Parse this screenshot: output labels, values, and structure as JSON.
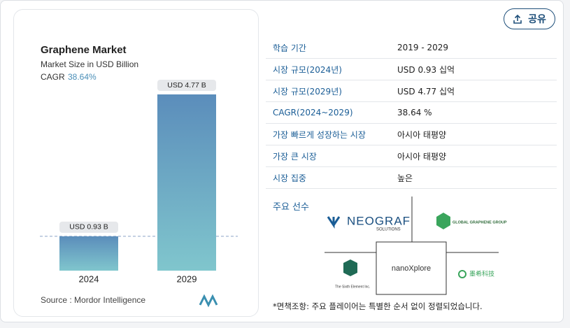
{
  "share_button": "공유",
  "chart_data": {
    "type": "bar",
    "title": "Graphene Market",
    "subtitle": "Market Size in USD Billion",
    "cagr_label": "CAGR",
    "cagr_value": "38.64%",
    "categories": [
      "2024",
      "2029"
    ],
    "values": [
      0.93,
      4.77
    ],
    "value_labels": [
      "USD 0.93 B",
      "USD 4.77 B"
    ],
    "source": "Source : Mordor Intelligence"
  },
  "table": {
    "rows": [
      [
        "학습 기간",
        "2019 - 2029"
      ],
      [
        "시장 규모(2024년)",
        "USD 0.93 십억"
      ],
      [
        "시장 규모(2029년)",
        "USD 4.77 십억"
      ],
      [
        "CAGR(2024~2029)",
        "38.64 %"
      ],
      [
        "가장 빠르게 성장하는 시장",
        "아시아 태평양"
      ],
      [
        "가장 큰 시장",
        "아시아 태평양"
      ],
      [
        "시장 집중",
        "높은"
      ]
    ]
  },
  "players": {
    "title": "주요 선수",
    "logos": [
      "NEOGRAF",
      "SOLUTIONS",
      "GLOBAL GRAPHENE GROUP",
      "The Sixth Element Inc.",
      "nanoXplore",
      "墨希科技"
    ],
    "disclaimer": "*면책조항: 주요 플레이어는 특별한 순서 없이 정렬되었습니다."
  }
}
